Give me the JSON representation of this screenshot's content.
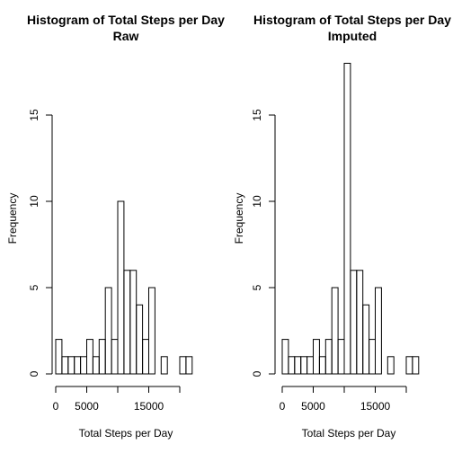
{
  "chart_data": [
    {
      "type": "bar",
      "title": "Histogram of Total Steps per Day",
      "subtitle": "Raw",
      "xlabel": "Total Steps per Day",
      "ylabel": "Frequency",
      "xlim": [
        0,
        22000
      ],
      "ylim": [
        0,
        18
      ],
      "x_ticks": [
        0,
        5000,
        15000
      ],
      "x_tick_labels": [
        "0",
        "5000",
        "15000"
      ],
      "y_ticks": [
        0,
        5,
        10,
        15
      ],
      "y_tick_labels": [
        "0",
        "5",
        "10",
        "15"
      ],
      "bin_width": 1000,
      "bin_starts": [
        0,
        1000,
        2000,
        3000,
        4000,
        5000,
        6000,
        7000,
        8000,
        9000,
        10000,
        11000,
        12000,
        13000,
        14000,
        15000,
        16000,
        17000,
        18000,
        19000,
        20000,
        21000
      ],
      "values": [
        2,
        1,
        1,
        1,
        1,
        2,
        1,
        2,
        5,
        2,
        10,
        6,
        6,
        4,
        2,
        5,
        0,
        1,
        0,
        0,
        1,
        1
      ]
    },
    {
      "type": "bar",
      "title": "Histogram of Total Steps per Day",
      "subtitle": "Imputed",
      "xlabel": "Total Steps per Day",
      "ylabel": "Frequency",
      "xlim": [
        0,
        22000
      ],
      "ylim": [
        0,
        18
      ],
      "x_ticks": [
        0,
        5000,
        15000
      ],
      "x_tick_labels": [
        "0",
        "5000",
        "15000"
      ],
      "y_ticks": [
        0,
        5,
        10,
        15
      ],
      "y_tick_labels": [
        "0",
        "5",
        "10",
        "15"
      ],
      "bin_width": 1000,
      "bin_starts": [
        0,
        1000,
        2000,
        3000,
        4000,
        5000,
        6000,
        7000,
        8000,
        9000,
        10000,
        11000,
        12000,
        13000,
        14000,
        15000,
        16000,
        17000,
        18000,
        19000,
        20000,
        21000
      ],
      "values": [
        2,
        1,
        1,
        1,
        1,
        2,
        1,
        2,
        5,
        2,
        18,
        6,
        6,
        4,
        2,
        5,
        0,
        1,
        0,
        0,
        1,
        1
      ]
    }
  ]
}
